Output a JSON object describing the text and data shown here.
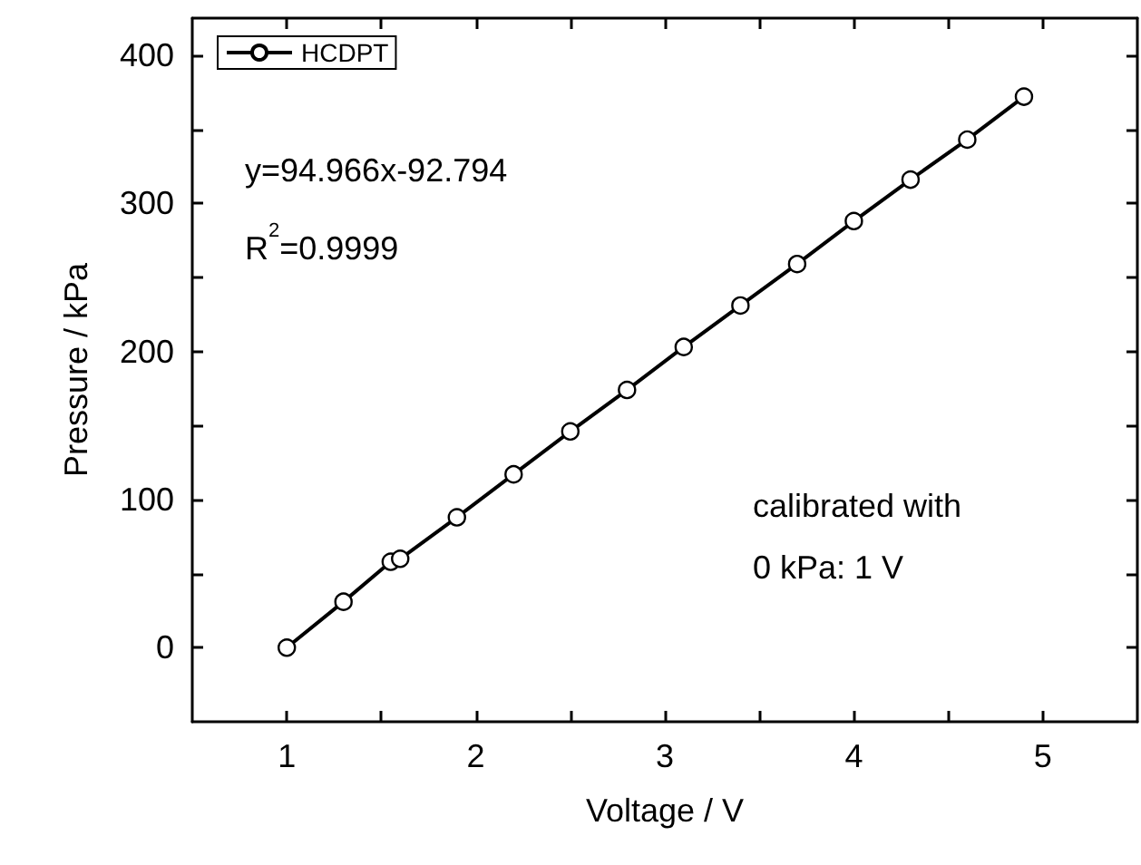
{
  "chart_data": {
    "type": "line",
    "xlabel": "Voltage / V",
    "ylabel": "Pressure / kPa",
    "x": [
      1,
      1.3,
      1.55,
      1.6,
      1.9,
      2.2,
      2.5,
      2.8,
      3.1,
      3.4,
      3.7,
      4.0,
      4.3,
      4.6,
      4.9
    ],
    "series": [
      {
        "name": "HCDPT",
        "color": "#000000",
        "values": [
          0,
          31,
          58,
          60,
          88,
          117,
          146,
          174,
          203,
          231,
          259,
          288,
          316,
          343,
          372
        ]
      }
    ],
    "xlim": [
      0.5,
      5.5
    ],
    "xticks": [
      1,
      {
        "value": 1.5,
        "label": null
      },
      2,
      {
        "value": 2.5,
        "label": null
      },
      3,
      {
        "value": 3.5,
        "label": null
      },
      4,
      {
        "value": 4.5,
        "label": null
      },
      5
    ],
    "ylim": [
      -50,
      425
    ],
    "yticks": [
      0,
      {
        "value": 50,
        "label": null
      },
      100,
      {
        "value": 150,
        "label": null
      },
      200,
      {
        "value": 250,
        "label": null
      },
      300,
      {
        "value": 350,
        "label": null
      },
      400
    ],
    "annotations": [
      "y=94.966x-92.794",
      "R$^{2}$=0.9999",
      "calibrated with",
      "0 kPa: 1 V"
    ],
    "marker": "circle",
    "line_style": "solid",
    "legend": "top left",
    "grid": false
  }
}
